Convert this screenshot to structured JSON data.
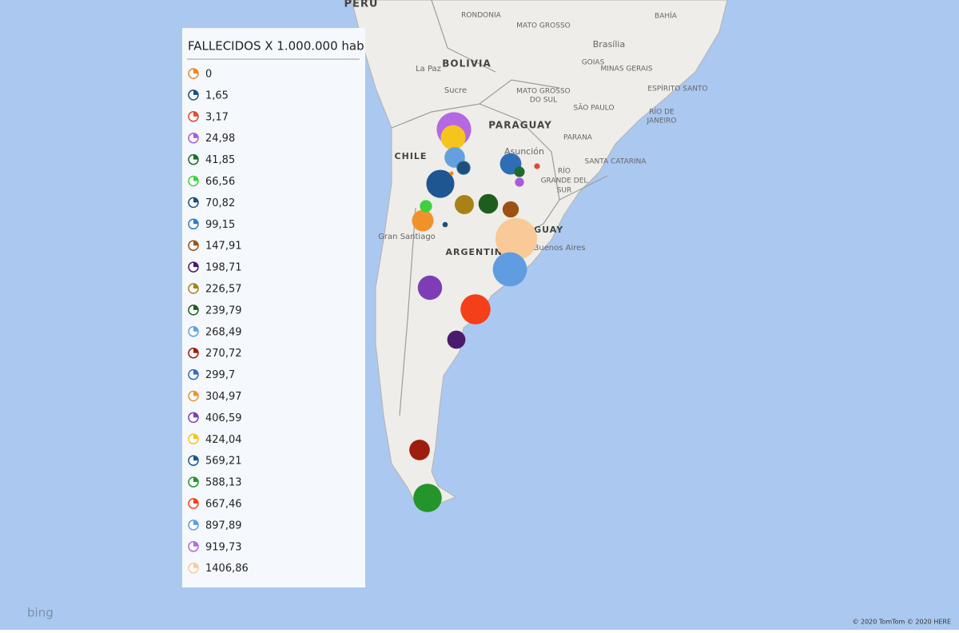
{
  "legend": {
    "title": "FALLECIDOS X 1.000.000 hab",
    "items": [
      {
        "value": 0,
        "label": "0",
        "color": "#E8872A"
      },
      {
        "value": 1.65,
        "label": "1,65",
        "color": "#1F4E79"
      },
      {
        "value": 3.17,
        "label": "3,17",
        "color": "#E04B2F"
      },
      {
        "value": 24.98,
        "label": "24,98",
        "color": "#A85BD8"
      },
      {
        "value": 41.85,
        "label": "41,85",
        "color": "#1E6B2E"
      },
      {
        "value": 66.56,
        "label": "66,56",
        "color": "#3ED13E"
      },
      {
        "value": 70.82,
        "label": "70,82",
        "color": "#1F4E79"
      },
      {
        "value": 99.15,
        "label": "99,15",
        "color": "#2E7CBF"
      },
      {
        "value": 147.91,
        "label": "147,91",
        "color": "#9C5213"
      },
      {
        "value": 198.71,
        "label": "198,71",
        "color": "#4A1A6E"
      },
      {
        "value": 226.57,
        "label": "226,57",
        "color": "#A88215"
      },
      {
        "value": 239.79,
        "label": "239,79",
        "color": "#1D5E1D"
      },
      {
        "value": 268.49,
        "label": "268,49",
        "color": "#64A0DE"
      },
      {
        "value": 270.72,
        "label": "270,72",
        "color": "#9E1E0E"
      },
      {
        "value": 299.7,
        "label": "299,7",
        "color": "#2F6EB5"
      },
      {
        "value": 304.97,
        "label": "304,97",
        "color": "#F0922C"
      },
      {
        "value": 406.59,
        "label": "406,59",
        "color": "#7E3DB5"
      },
      {
        "value": 424.04,
        "label": "424,04",
        "color": "#F5C51E"
      },
      {
        "value": 569.21,
        "label": "569,21",
        "color": "#1D5690"
      },
      {
        "value": 588.13,
        "label": "588,13",
        "color": "#24952A"
      },
      {
        "value": 667.46,
        "label": "667,46",
        "color": "#F53E1A"
      },
      {
        "value": 897.89,
        "label": "897,89",
        "color": "#5F9DE0"
      },
      {
        "value": 919.73,
        "label": "919,73",
        "color": "#B667E2"
      },
      {
        "value": 1406.86,
        "label": "1406,86",
        "color": "#F9C997"
      }
    ]
  },
  "map": {
    "labels": [
      "PERU",
      "BOLIVIA",
      "La Paz",
      "Sucre",
      "RONDONIA",
      "MATO GROSSO",
      "BAHÍA",
      "Brasília",
      "GOIAS",
      "MINAS GERAIS",
      "ESPÍRITO SANTO",
      "MATO GROSSO",
      "DO SUL",
      "SÃO PAULO",
      "RÍO DE",
      "JANEIRO",
      "PARAGUAY",
      "Asunción",
      "PARANA",
      "SANTA CATARINA",
      "RÍO",
      "GRANDE DEL",
      "SUR",
      "CHILE",
      "ARGENTINA",
      "Gran Santiago",
      "URUGUAY",
      "Buenos Aires"
    ],
    "provider": "bing",
    "copyright": "© 2020 TomTom © 2020 HERE"
  }
}
